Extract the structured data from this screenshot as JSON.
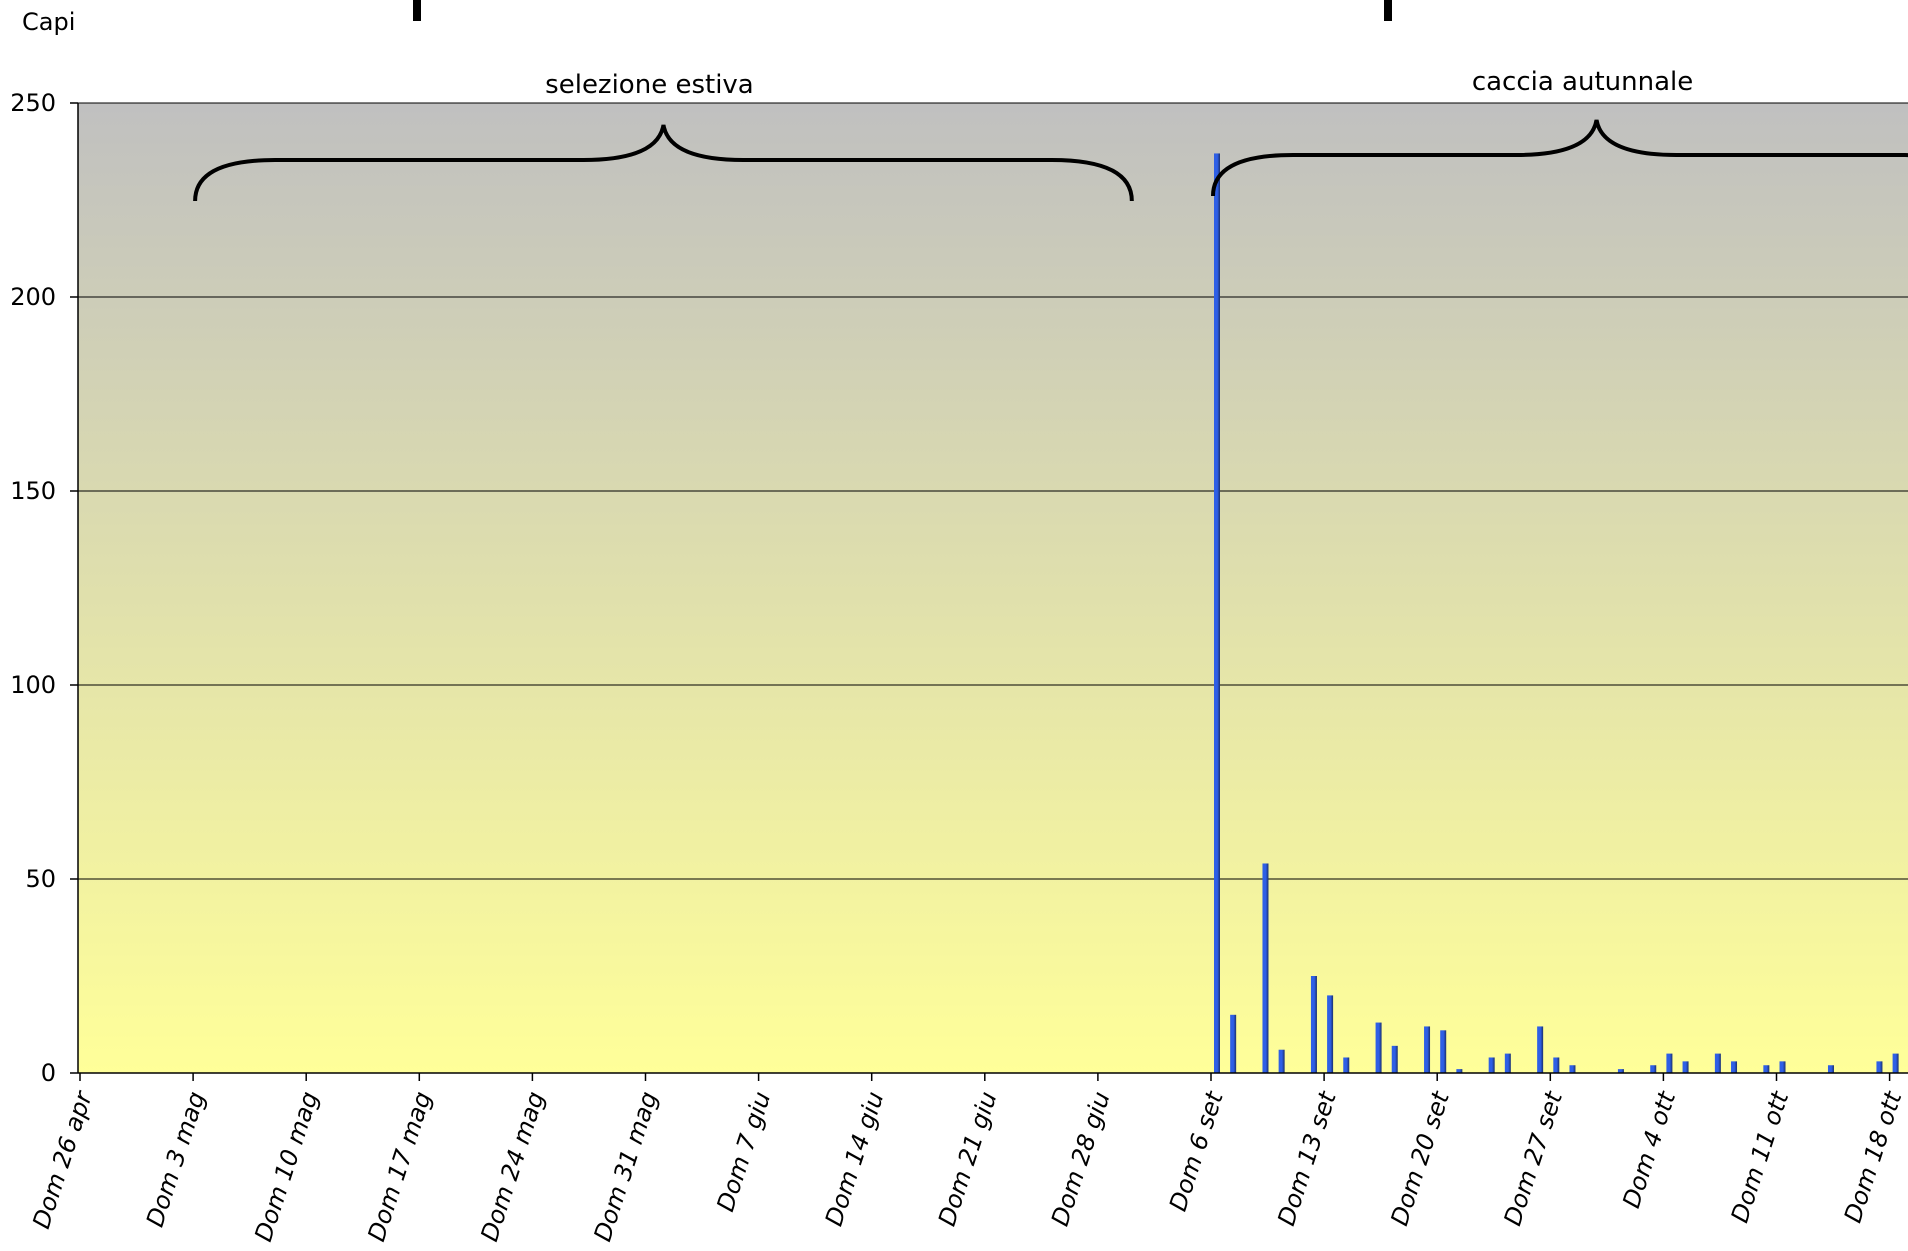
{
  "chart_data": {
    "type": "bar",
    "title": "",
    "xlabel": "",
    "ylabel": "Capi",
    "ylim": [
      0,
      250
    ],
    "yticks": [
      0,
      50,
      100,
      150,
      200,
      250
    ],
    "grid": true,
    "legend": "none",
    "background_gradient": [
      "#c0c0c0",
      "#ffff99"
    ],
    "bar_color": "#2e5fe6",
    "bar_shade_color": "#1a2f6e",
    "x_tick_labels": [
      "Dom 26 apr",
      "Dom 3 mag",
      "Dom 10 mag",
      "Dom 17 mag",
      "Dom 24 mag",
      "Dom 31 mag",
      "Dom 7 giu",
      "Dom 14 giu",
      "Dom 21 giu",
      "Dom 28 giu",
      "Dom 6 set",
      "Dom 13 set",
      "Dom 20 set",
      "Dom 27 set",
      "Dom 4 ott",
      "Dom 11 ott",
      "Dom 18 ott"
    ],
    "days_per_week_slot": 7,
    "bars": [
      {
        "slot": 10,
        "day": 0,
        "value": 237
      },
      {
        "slot": 10,
        "day": 1,
        "value": 15
      },
      {
        "slot": 10,
        "day": 3,
        "value": 54
      },
      {
        "slot": 10,
        "day": 4,
        "value": 6
      },
      {
        "slot": 10,
        "day": 6,
        "value": 25
      },
      {
        "slot": 11,
        "day": 0,
        "value": 20
      },
      {
        "slot": 11,
        "day": 1,
        "value": 4
      },
      {
        "slot": 11,
        "day": 3,
        "value": 13
      },
      {
        "slot": 11,
        "day": 4,
        "value": 7
      },
      {
        "slot": 11,
        "day": 6,
        "value": 12
      },
      {
        "slot": 12,
        "day": 0,
        "value": 11
      },
      {
        "slot": 12,
        "day": 1,
        "value": 1
      },
      {
        "slot": 12,
        "day": 3,
        "value": 4
      },
      {
        "slot": 12,
        "day": 4,
        "value": 5
      },
      {
        "slot": 12,
        "day": 6,
        "value": 12
      },
      {
        "slot": 13,
        "day": 0,
        "value": 4
      },
      {
        "slot": 13,
        "day": 1,
        "value": 2
      },
      {
        "slot": 13,
        "day": 4,
        "value": 1
      },
      {
        "slot": 13,
        "day": 6,
        "value": 2
      },
      {
        "slot": 14,
        "day": 0,
        "value": 5
      },
      {
        "slot": 14,
        "day": 1,
        "value": 3
      },
      {
        "slot": 14,
        "day": 3,
        "value": 5
      },
      {
        "slot": 14,
        "day": 4,
        "value": 3
      },
      {
        "slot": 14,
        "day": 6,
        "value": 2
      },
      {
        "slot": 15,
        "day": 0,
        "value": 3
      },
      {
        "slot": 15,
        "day": 3,
        "value": 2
      },
      {
        "slot": 15,
        "day": 6,
        "value": 3
      },
      {
        "slot": 16,
        "day": 0,
        "value": 5
      },
      {
        "slot": 16,
        "day": 1,
        "value": 3
      }
    ],
    "annotations": [
      {
        "text": "selezione estiva",
        "from_slot": 1,
        "to_slot": 9.3
      },
      {
        "text": "caccia autunnale",
        "from_slot": 10,
        "to_slot": 16.8
      }
    ]
  }
}
